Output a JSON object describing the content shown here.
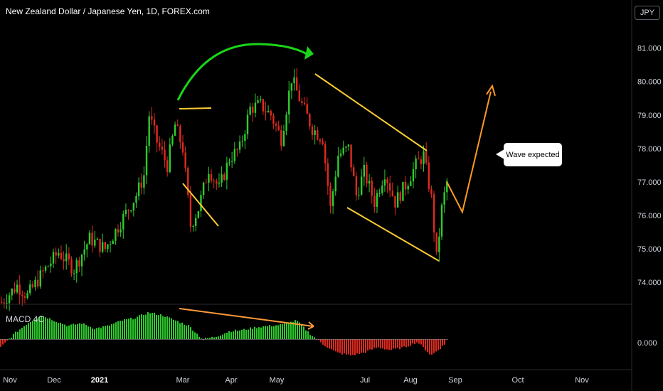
{
  "header": {
    "title": "New Zealand Dollar / Japanese Yen, 1D, FOREX.com",
    "currency": "JPY"
  },
  "macd": {
    "label": "MACD 4C",
    "zero_label": "0.000"
  },
  "annotation": {
    "callout_text": "Wave expected"
  },
  "colors": {
    "background": "#000000",
    "up": "#2ecc2e",
    "down": "#e02a1f",
    "pattern_lines": "#ffcc33",
    "forecast": "#ff9a1f",
    "arc": "#19d619",
    "divergence": "#ff9a3c",
    "grid": "#1e1e1e"
  },
  "chart_data": {
    "type": "candlestick",
    "title": "New Zealand Dollar / Japanese Yen, 1D, FOREX.com",
    "ylabel": "JPY",
    "ylim": [
      73.3,
      81.8
    ],
    "y_ticks": [
      "81.000",
      "80.000",
      "79.000",
      "78.000",
      "77.000",
      "76.000",
      "75.000",
      "74.000"
    ],
    "x_ticks": [
      {
        "label": "Nov",
        "bold": false
      },
      {
        "label": "Dec",
        "bold": false
      },
      {
        "label": "2021",
        "bold": true
      },
      {
        "label": "Mar",
        "bold": false
      },
      {
        "label": "Apr",
        "bold": false
      },
      {
        "label": "May",
        "bold": false
      },
      {
        "label": "Jul",
        "bold": false
      },
      {
        "label": "Aug",
        "bold": false
      },
      {
        "label": "Sep",
        "bold": false
      },
      {
        "label": "Oct",
        "bold": false
      },
      {
        "label": "Nov",
        "bold": false
      }
    ],
    "price_path": [
      [
        0,
        73.4
      ],
      [
        6,
        73.9
      ],
      [
        10,
        73.6
      ],
      [
        16,
        74.3
      ],
      [
        22,
        74.9
      ],
      [
        28,
        74.4
      ],
      [
        34,
        75.3
      ],
      [
        40,
        75.0
      ],
      [
        46,
        75.8
      ],
      [
        52,
        76.6
      ],
      [
        55,
        77.2
      ],
      [
        57,
        79.0
      ],
      [
        60,
        78.2
      ],
      [
        64,
        77.5
      ],
      [
        67,
        78.7
      ],
      [
        70,
        78.0
      ],
      [
        73,
        75.7
      ],
      [
        76,
        76.2
      ],
      [
        80,
        77.4
      ],
      [
        84,
        76.8
      ],
      [
        88,
        77.7
      ],
      [
        92,
        78.0
      ],
      [
        96,
        79.2
      ],
      [
        100,
        79.3
      ],
      [
        104,
        79.0
      ],
      [
        108,
        78.3
      ],
      [
        112,
        80.1
      ],
      [
        116,
        79.3
      ],
      [
        120,
        78.6
      ],
      [
        124,
        78.3
      ],
      [
        127,
        76.2
      ],
      [
        130,
        77.8
      ],
      [
        134,
        78.0
      ],
      [
        137,
        76.6
      ],
      [
        140,
        77.3
      ],
      [
        144,
        76.4
      ],
      [
        148,
        77.3
      ],
      [
        152,
        76.4
      ],
      [
        156,
        76.9
      ],
      [
        160,
        77.5
      ],
      [
        163,
        77.8
      ],
      [
        166,
        76.5
      ],
      [
        168,
        74.7
      ],
      [
        170,
        76.2
      ],
      [
        172,
        77.0
      ]
    ],
    "series": [
      {
        "name": "MACD 4C",
        "values": [
          -0.3,
          0.2,
          0.6,
          0.9,
          0.7,
          0.5,
          0.6,
          0.4,
          0.5,
          0.7,
          0.8,
          1.0,
          0.9,
          0.7,
          0.5,
          0.0,
          0.1,
          0.3,
          0.35,
          0.45,
          0.5,
          0.55,
          0.7,
          0.2,
          -0.2,
          -0.5,
          -0.6,
          -0.5,
          -0.3,
          -0.4,
          -0.3,
          -0.1,
          -0.6,
          -0.2
        ]
      }
    ],
    "macd_ylim": [
      -1.0,
      1.2
    ],
    "forecast": [
      [
        172,
        77.0
      ],
      [
        178,
        76.1
      ],
      [
        189,
        79.7
      ]
    ],
    "grid": false,
    "legend": "none"
  }
}
